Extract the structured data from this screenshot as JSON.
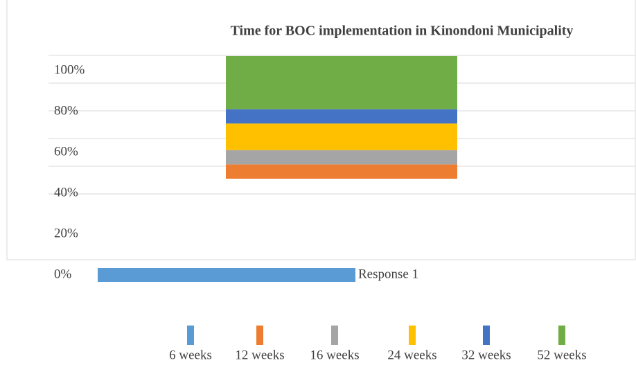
{
  "chart_data": {
    "type": "stacked_bar",
    "title": "Time for BOC implementation in Kinondoni Municipality",
    "categories": [
      "Response 1"
    ],
    "series": [
      {
        "name": "6 weeks",
        "color": "#5b9bd5",
        "values": [
          40
        ]
      },
      {
        "name": "12 weeks",
        "color": "#ed7d31",
        "values": [
          7
        ]
      },
      {
        "name": "16 weeks",
        "color": "#a5a5a5",
        "values": [
          7
        ]
      },
      {
        "name": "24 weeks",
        "color": "#ffc000",
        "values": [
          13
        ]
      },
      {
        "name": "32 weeks",
        "color": "#4472c4",
        "values": [
          7
        ]
      },
      {
        "name": "52 weeks",
        "color": "#70ad47",
        "values": [
          26
        ]
      }
    ],
    "ylim": [
      0,
      100
    ],
    "yticks": [
      {
        "value": 0,
        "label": "0%"
      },
      {
        "value": 20,
        "label": "20%"
      },
      {
        "value": 40,
        "label": "40%"
      },
      {
        "value": 60,
        "label": "60%"
      },
      {
        "value": 80,
        "label": "80%"
      },
      {
        "value": 100,
        "label": "100%"
      }
    ],
    "grid": true,
    "legend": "bottom"
  }
}
